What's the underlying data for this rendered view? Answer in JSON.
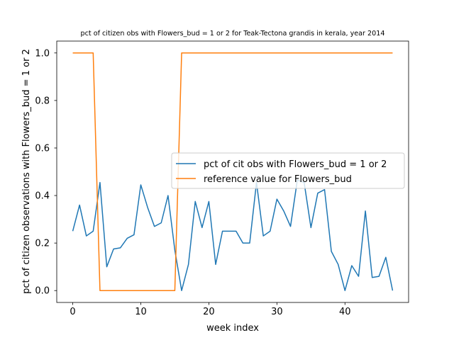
{
  "chart_data": {
    "type": "line",
    "title": "pct of citizen obs with Flowers_bud = 1 or 2 for Teak-Tectona grandis in kerala, year 2014",
    "xlabel": "week index",
    "ylabel": "pct of citizen observations with Flowers_bud = 1 or 2",
    "xlim": [
      -2.35,
      49.35
    ],
    "ylim": [
      -0.05,
      1.05
    ],
    "xticks": [
      0,
      10,
      20,
      30,
      40
    ],
    "yticks": [
      0.0,
      0.2,
      0.4,
      0.6,
      0.8,
      1.0
    ],
    "legend_position": "center-right",
    "grid": false,
    "series": [
      {
        "name": "pct of cit obs with Flowers_bud = 1 or 2",
        "color": "#1f77b4",
        "x": [
          0,
          1,
          2,
          3,
          4,
          5,
          6,
          7,
          8,
          9,
          10,
          11,
          12,
          13,
          14,
          15,
          16,
          17,
          18,
          19,
          20,
          21,
          22,
          23,
          24,
          25,
          26,
          27,
          28,
          29,
          30,
          31,
          32,
          33,
          34,
          35,
          36,
          37,
          38,
          39,
          40,
          41,
          42,
          43,
          44,
          45,
          46,
          47
        ],
        "y": [
          0.25,
          0.36,
          0.23,
          0.25,
          0.455,
          0.1,
          0.175,
          0.18,
          0.22,
          0.235,
          0.445,
          0.35,
          0.27,
          0.285,
          0.4,
          0.17,
          0.0,
          0.11,
          0.375,
          0.265,
          0.375,
          0.11,
          0.25,
          0.25,
          0.25,
          0.2,
          0.2,
          0.455,
          0.23,
          0.25,
          0.385,
          0.335,
          0.27,
          0.465,
          0.455,
          0.265,
          0.41,
          0.425,
          0.165,
          0.11,
          0.0,
          0.105,
          0.06,
          0.335,
          0.055,
          0.06,
          0.14,
          0.0
        ]
      },
      {
        "name": "reference value for Flowers_bud",
        "color": "#ff7f0e",
        "x": [
          0,
          1,
          2,
          3,
          4,
          5,
          6,
          7,
          8,
          9,
          10,
          11,
          12,
          13,
          14,
          15,
          16,
          17,
          18,
          19,
          20,
          21,
          22,
          23,
          24,
          25,
          26,
          27,
          28,
          29,
          30,
          31,
          32,
          33,
          34,
          35,
          36,
          37,
          38,
          39,
          40,
          41,
          42,
          43,
          44,
          45,
          46,
          47
        ],
        "y": [
          1,
          1,
          1,
          1,
          0,
          0,
          0,
          0,
          0,
          0,
          0,
          0,
          0,
          0,
          0,
          0,
          1,
          1,
          1,
          1,
          1,
          1,
          1,
          1,
          1,
          1,
          1,
          1,
          1,
          1,
          1,
          1,
          1,
          1,
          1,
          1,
          1,
          1,
          1,
          1,
          1,
          1,
          1,
          1,
          1,
          1,
          1,
          1
        ]
      }
    ]
  }
}
